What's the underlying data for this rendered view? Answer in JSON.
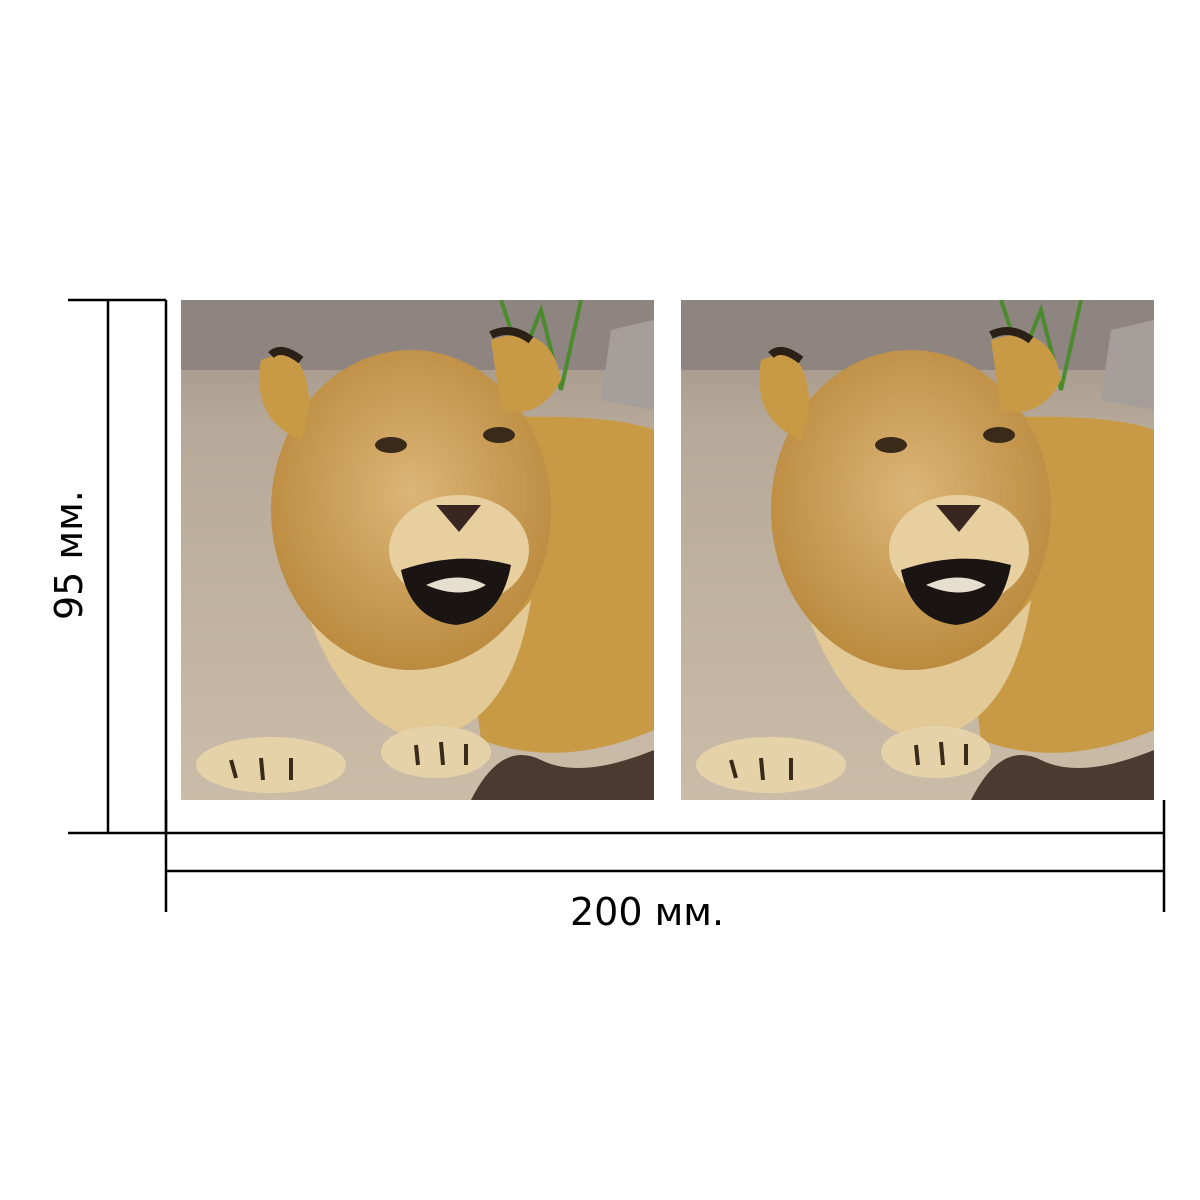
{
  "dimensions": {
    "width_label": "200 мм.",
    "height_label": "95 мм."
  },
  "photos": [
    {
      "subject": "lioness-photo"
    },
    {
      "subject": "lioness-photo"
    }
  ],
  "colors": {
    "line": "#000000",
    "ground": "#c9b8a1",
    "fur": "#c9983f",
    "fur_light": "#e3c584",
    "rock": "#8d8480"
  }
}
